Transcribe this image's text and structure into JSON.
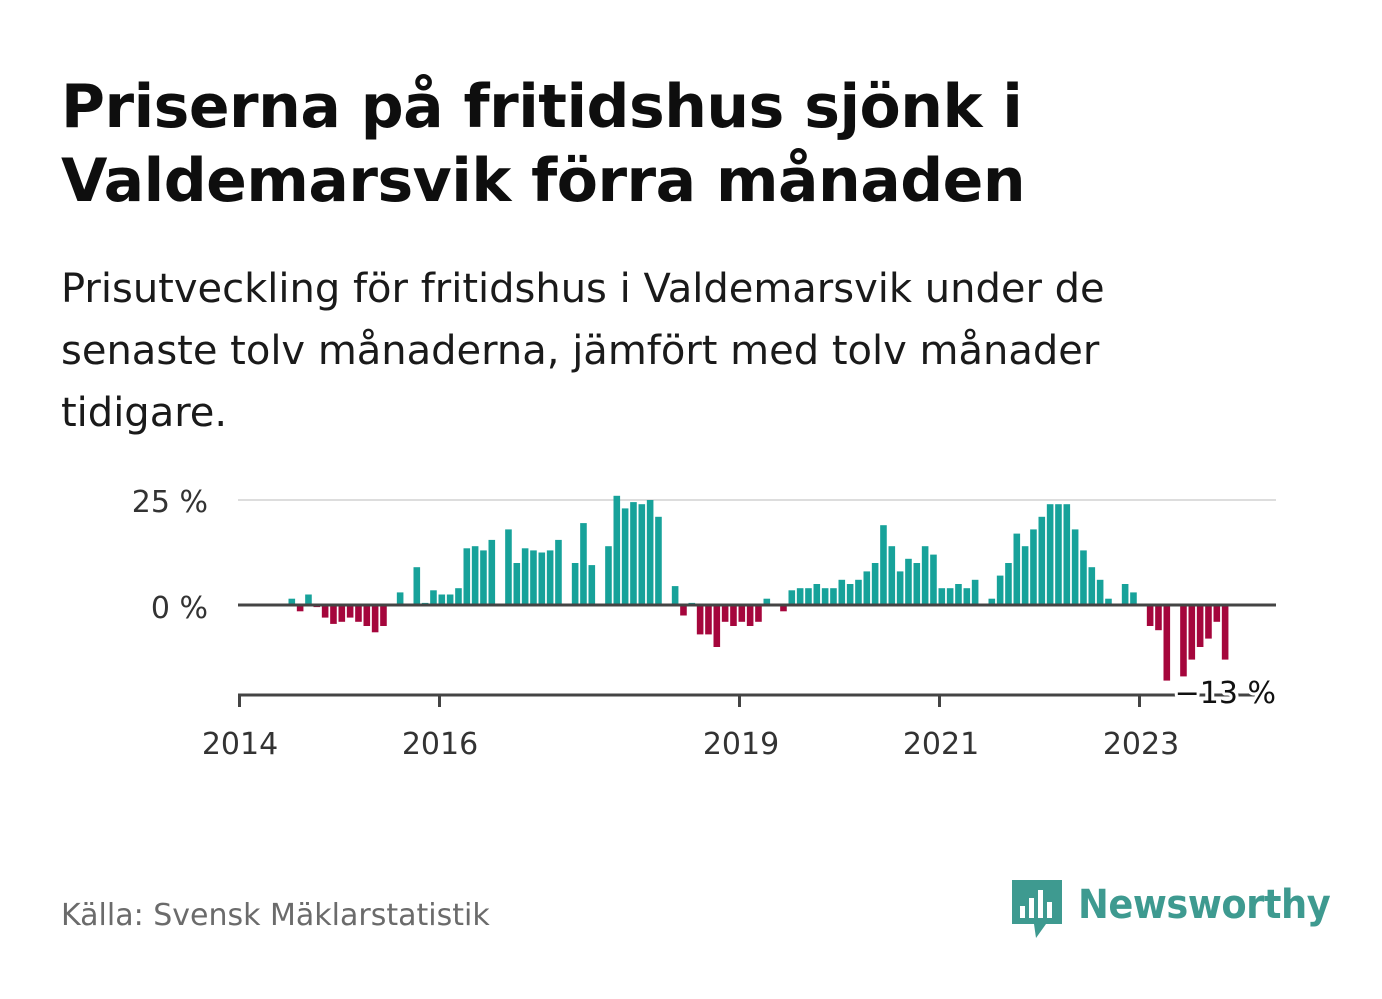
{
  "title": "Priserna på fritidshus sjönk i Valdemarsvik förra månaden",
  "subtitle": "Prisutveckling för fritidshus i Valdemarsvik under de senaste tolv månaderna, jämfört med tolv månader tidigare.",
  "source": "Källa: Svensk Mäklarstatistik",
  "brand": "Newsworthy",
  "colors": {
    "positive": "#17a29a",
    "negative": "#a5063c",
    "brand": "#3e9a90",
    "gridline": "#dddddd",
    "zero_line": "#444444"
  },
  "chart_data": {
    "type": "bar",
    "start": "2014-01",
    "x_ticks": [
      "2014",
      "2016",
      "2019",
      "2021",
      "2023"
    ],
    "y_ticks": [
      "25 %",
      "0 %"
    ],
    "ylim": [
      -21,
      27
    ],
    "grid": true,
    "annotation": "−13 %",
    "values": [
      0,
      0,
      0,
      0,
      0,
      0,
      1.5,
      -1.5,
      2.5,
      -0.5,
      -3,
      -4.5,
      -4,
      -3,
      -4,
      -5,
      -6.5,
      -5,
      0,
      3,
      0,
      9,
      0.5,
      3.5,
      2.5,
      2.5,
      4,
      13.5,
      14,
      13,
      15.5,
      0,
      18,
      10,
      13.5,
      13,
      12.5,
      13,
      15.5,
      0,
      10,
      19.5,
      9.5,
      0,
      14,
      26,
      23,
      24.5,
      24,
      25,
      21,
      0,
      4.5,
      -2.5,
      0.5,
      -7,
      -7,
      -10,
      -4,
      -5,
      -4,
      -5,
      -4,
      1.5,
      0,
      -1.5,
      3.5,
      4,
      4,
      5,
      4,
      4,
      6,
      5,
      6,
      8,
      10,
      19,
      14,
      8,
      11,
      10,
      14,
      12,
      4,
      4,
      5,
      4,
      6,
      0,
      1.5,
      7,
      10,
      17,
      14,
      18,
      21,
      24,
      24,
      24,
      18,
      13,
      9,
      6,
      1.5,
      0,
      5,
      3,
      0,
      -5,
      -6,
      -18,
      0,
      -17,
      -13,
      -10,
      -8,
      -4,
      -13
    ]
  }
}
